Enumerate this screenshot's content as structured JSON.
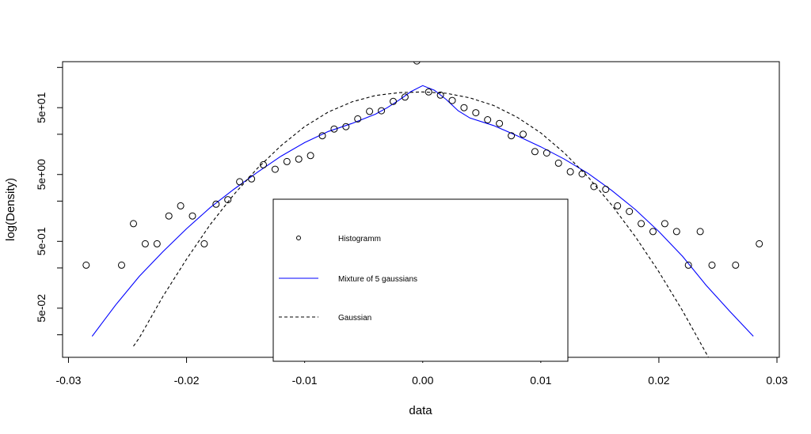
{
  "chart_data": {
    "type": "scatter",
    "xlabel": "data",
    "ylabel": "log(Density)",
    "xlim": [
      -0.0305,
      0.0302
    ],
    "ylog": true,
    "ylim": [
      0.0092,
      244
    ],
    "x_ticks": [
      {
        "value": -0.03,
        "label": "-0.03"
      },
      {
        "value": -0.02,
        "label": "-0.02"
      },
      {
        "value": -0.01,
        "label": "-0.01"
      },
      {
        "value": 0.0,
        "label": "0.00"
      },
      {
        "value": 0.01,
        "label": "0.01"
      },
      {
        "value": 0.02,
        "label": "0.02"
      },
      {
        "value": 0.03,
        "label": "0.03"
      }
    ],
    "y_ticks": [
      {
        "value": 0.05,
        "label": "5e-02"
      },
      {
        "value": 0.5,
        "label": "5e-01"
      },
      {
        "value": 5,
        "label": "5e+00"
      },
      {
        "value": 50,
        "label": "5e+01"
      }
    ],
    "y_minor_ticks": [
      0.02,
      0.2,
      2,
      20,
      200
    ],
    "grid": false,
    "legend_position": "bottom-center",
    "series": [
      {
        "name": "Histogramm",
        "kind": "points",
        "color": "#000000",
        "x": [
          -0.0285,
          -0.0255,
          -0.0245,
          -0.0235,
          -0.0225,
          -0.0215,
          -0.0205,
          -0.0195,
          -0.0185,
          -0.0175,
          -0.0165,
          -0.0155,
          -0.0145,
          -0.0135,
          -0.0125,
          -0.0115,
          -0.0105,
          -0.0095,
          -0.0085,
          -0.0075,
          -0.0065,
          -0.0055,
          -0.0045,
          -0.0035,
          -0.0025,
          -0.0015,
          -0.0005,
          0.0005,
          0.0015,
          0.0025,
          0.0035,
          0.0045,
          0.0055,
          0.0065,
          0.0075,
          0.0085,
          0.0095,
          0.0105,
          0.0115,
          0.0125,
          0.0135,
          0.0145,
          0.0155,
          0.0165,
          0.0175,
          0.0185,
          0.0195,
          0.0205,
          0.0215,
          0.0225,
          0.0235,
          0.0245,
          0.0265,
          0.0285
        ],
        "y": [
          0.22,
          0.22,
          0.92,
          0.46,
          0.46,
          1.2,
          1.7,
          1.2,
          0.46,
          1.8,
          2.1,
          3.9,
          4.3,
          7.0,
          6.0,
          7.8,
          8.5,
          9.6,
          19,
          24,
          26,
          34,
          44,
          45,
          62,
          72,
          250,
          86,
          77,
          64,
          50,
          42,
          33,
          29,
          19,
          20,
          11,
          10.5,
          7.4,
          5.5,
          5.1,
          3.3,
          3.0,
          1.7,
          1.4,
          0.92,
          0.7,
          0.92,
          0.7,
          0.22,
          0.7,
          0.22,
          0.22,
          0.46
        ]
      },
      {
        "name": "Mixture of 5 gaussians",
        "kind": "line",
        "color": "#0000ff",
        "dash": "solid",
        "x": [
          -0.028,
          -0.026,
          -0.024,
          -0.022,
          -0.02,
          -0.018,
          -0.016,
          -0.014,
          -0.012,
          -0.01,
          -0.008,
          -0.006,
          -0.004,
          -0.003,
          -0.002,
          -0.001,
          0.0,
          0.001,
          0.002,
          0.003,
          0.004,
          0.006,
          0.008,
          0.01,
          0.012,
          0.014,
          0.016,
          0.018,
          0.02,
          0.022,
          0.024,
          0.026,
          0.028
        ],
        "y": [
          0.019,
          0.056,
          0.15,
          0.35,
          0.77,
          1.6,
          3.0,
          5.4,
          9.4,
          15,
          22,
          29,
          40,
          50,
          65,
          87,
          107,
          91,
          66,
          45,
          35,
          27,
          19,
          13,
          8.5,
          5.2,
          2.9,
          1.5,
          0.7,
          0.3,
          0.11,
          0.045,
          0.019
        ]
      },
      {
        "name": "Gaussian",
        "kind": "line",
        "color": "#000000",
        "dash": "dashed",
        "x": [
          -0.0245,
          -0.024,
          -0.022,
          -0.02,
          -0.018,
          -0.016,
          -0.014,
          -0.012,
          -0.01,
          -0.008,
          -0.006,
          -0.004,
          -0.002,
          0.0,
          0.002,
          0.004,
          0.006,
          0.008,
          0.01,
          0.012,
          0.014,
          0.016,
          0.018,
          0.02,
          0.022,
          0.024,
          0.0243
        ],
        "y": [
          0.0135,
          0.018,
          0.075,
          0.27,
          0.89,
          2.5,
          6.2,
          13.5,
          26,
          43,
          61,
          76,
          84,
          86,
          82,
          70,
          54,
          36,
          21,
          10.5,
          4.6,
          1.75,
          0.59,
          0.175,
          0.046,
          0.0106,
          0.0085
        ]
      }
    ]
  }
}
